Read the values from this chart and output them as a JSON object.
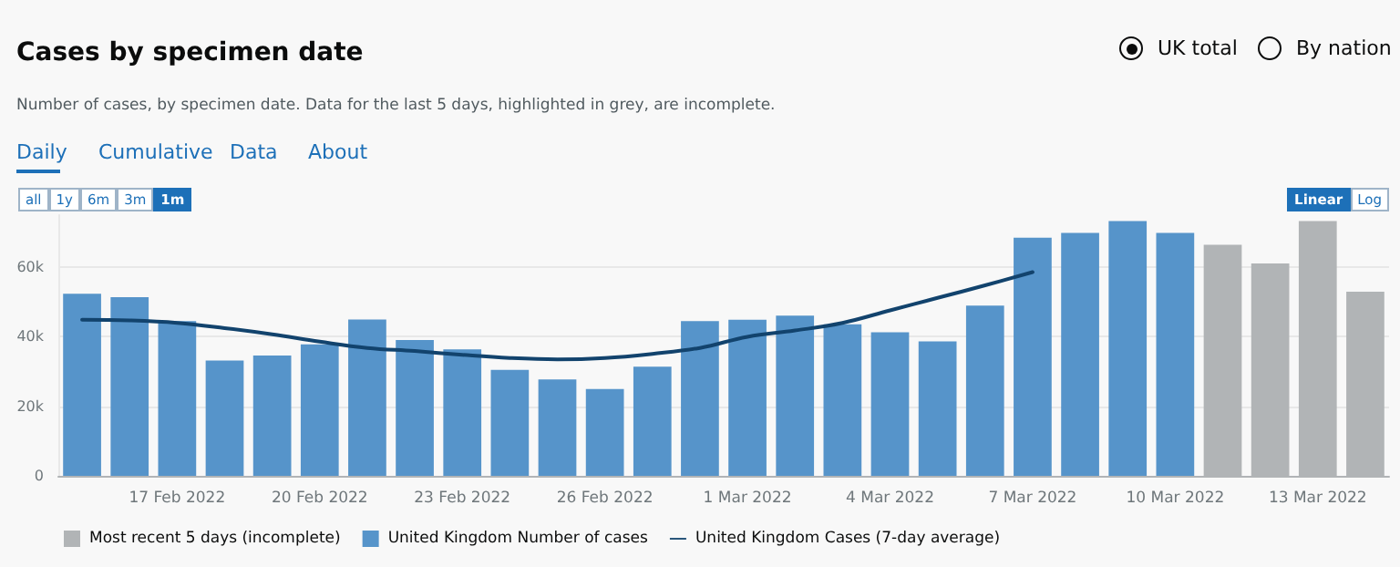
{
  "chart_data": {
    "type": "bar",
    "title": "Cases by specimen date",
    "subtitle": "Number of cases, by specimen date. Data for the last 5 days, highlighted in grey, are incomplete.",
    "annotations": [
      "UK total",
      "By nation",
      "Daily",
      "Cumulative",
      "Data",
      "About",
      "all",
      "1y",
      "6m",
      "3m",
      "1m",
      "Linear",
      "Log"
    ],
    "categories": [
      null,
      null,
      "17 Feb 2022",
      null,
      null,
      "20 Feb 2022",
      null,
      null,
      "23 Feb 2022",
      null,
      null,
      "26 Feb 2022",
      null,
      null,
      "1 Mar 2022",
      null,
      null,
      "4 Mar 2022",
      null,
      null,
      "7 Mar 2022",
      null,
      null,
      "10 Mar 2022",
      null,
      null,
      "13 Mar 2022",
      null
    ],
    "stacked": true,
    "series": [
      {
        "name": "Most recent 5 days (incomplete)",
        "color": "#b1b4b6",
        "values": [
          null,
          null,
          null,
          null,
          null,
          null,
          null,
          null,
          null,
          null,
          null,
          null,
          null,
          null,
          null,
          null,
          null,
          null,
          null,
          null,
          null,
          null,
          null,
          null,
          66500,
          61100,
          73300,
          53000
        ]
      },
      {
        "name": "United Kingdom Number of cases",
        "color": "#5694ca",
        "values": [
          52400,
          51400,
          44500,
          33200,
          34600,
          37800,
          45000,
          39100,
          36400,
          30500,
          27700,
          25000,
          31400,
          44500,
          44900,
          46100,
          43600,
          41300,
          38700,
          49000,
          68500,
          69900,
          73300,
          69900,
          null,
          null,
          null,
          null
        ]
      },
      {
        "name": "United Kingdom Cases (7-day average)",
        "type": "line",
        "color": "#12436d",
        "marker": "none",
        "values": [
          44900,
          44700,
          44000,
          42500,
          40700,
          38600,
          36800,
          35900,
          34800,
          33900,
          33500,
          33900,
          35100,
          36800,
          40000,
          41800,
          44000,
          47600,
          51200,
          54800,
          58600,
          null,
          null,
          null,
          null,
          null,
          null,
          null
        ]
      }
    ],
    "ylim": [
      0,
      75000
    ],
    "yticks": [
      0,
      {
        "value": 20000,
        "label": "20k"
      },
      {
        "value": 40000,
        "label": "40k"
      },
      {
        "value": 60000,
        "label": "60k"
      }
    ],
    "grid": "y",
    "legend": "bottom left"
  }
}
